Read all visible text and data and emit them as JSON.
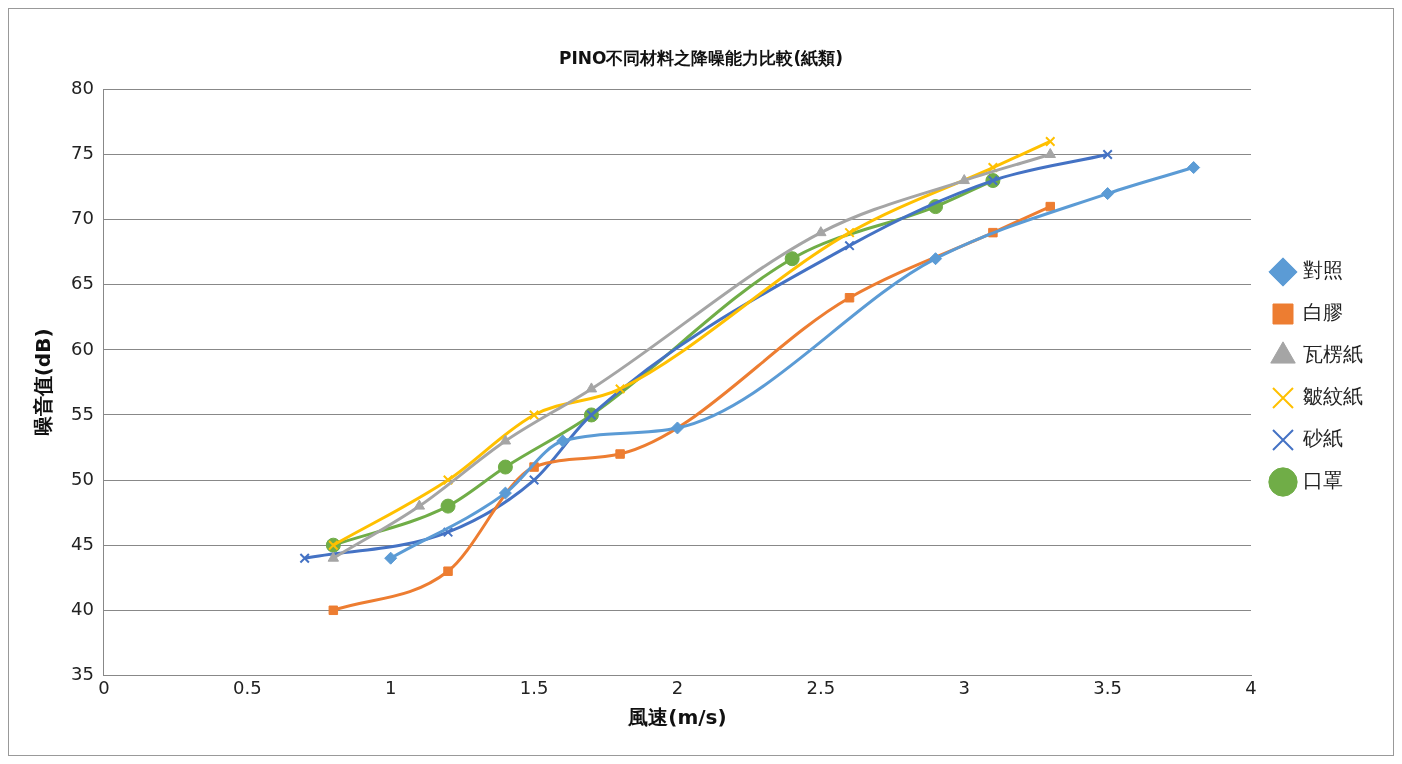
{
  "chart_data": {
    "type": "line",
    "title": "PINO不同材料之降噪能力比較(紙類)",
    "xlabel": "風速(m/s)",
    "ylabel": "噪音值(dB)",
    "xlim": [
      0,
      4
    ],
    "xticks": [
      0,
      0.5,
      1,
      1.5,
      2,
      2.5,
      3,
      3.5,
      4
    ],
    "ylim": [
      35,
      80
    ],
    "yticks": [
      35,
      40,
      45,
      50,
      55,
      60,
      65,
      70,
      75,
      80
    ],
    "grid": "y",
    "legend": "right",
    "series": [
      {
        "name": "對照",
        "color": "#5b9bd5",
        "marker": "diamond",
        "x": [
          1,
          1.4,
          1.6,
          2,
          2.9,
          3.5,
          3.8
        ],
        "values": [
          44,
          49,
          53,
          54,
          67,
          72,
          74
        ]
      },
      {
        "name": "白膠",
        "color": "#ed7d31",
        "marker": "square",
        "x": [
          0.8,
          1.2,
          1.5,
          1.8,
          2.6,
          3.1,
          3.3
        ],
        "values": [
          40,
          43,
          51,
          52,
          64,
          69,
          71
        ]
      },
      {
        "name": "瓦楞紙",
        "color": "#a5a5a5",
        "marker": "triangle",
        "x": [
          0.8,
          1.1,
          1.4,
          1.7,
          2.5,
          3.0,
          3.3
        ],
        "values": [
          44,
          48,
          53,
          57,
          69,
          73,
          75
        ]
      },
      {
        "name": "皺紋紙",
        "color": "#ffc000",
        "marker": "cross",
        "x": [
          0.8,
          1.2,
          1.5,
          1.8,
          2.6,
          3.1,
          3.3
        ],
        "values": [
          45,
          50,
          55,
          57,
          69,
          74,
          76
        ]
      },
      {
        "name": "砂紙",
        "color": "#4472c4",
        "marker": "cross",
        "x": [
          0.7,
          1.2,
          1.5,
          1.7,
          2.6,
          3.1,
          3.5
        ],
        "values": [
          44,
          46,
          50,
          55,
          68,
          73,
          75
        ]
      },
      {
        "name": "口罩",
        "color": "#70ad47",
        "marker": "circle",
        "x": [
          0.8,
          1.2,
          1.4,
          1.7,
          2.4,
          2.9,
          3.1
        ],
        "values": [
          45,
          48,
          51,
          55,
          67,
          71,
          73
        ]
      }
    ]
  }
}
